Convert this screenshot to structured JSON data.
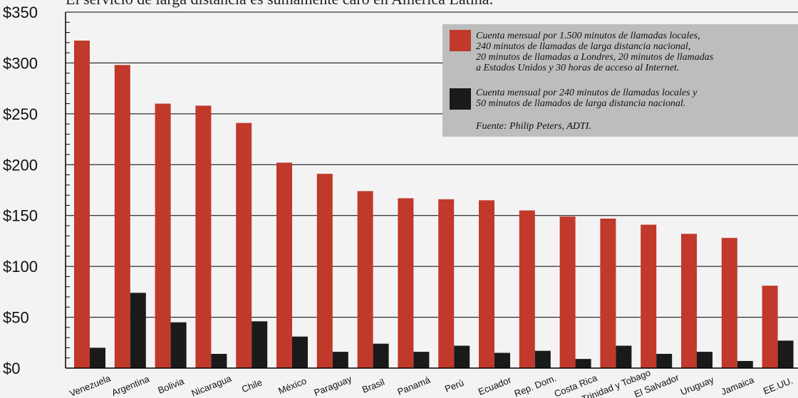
{
  "title": "El servicio de larga distancia es sumamente caro en América Latina.",
  "colors": {
    "series1": "#c0392b",
    "series2": "#1a1a1a",
    "background": "#f3f3f3",
    "legend_bg": "#bdbdbd"
  },
  "legend": {
    "entry1_lines": [
      "Cuenta mensual por 1.500 minutos de llamadas locales,",
      "240 minutos de llamadas de larga distancia nacional,",
      "20 minutos de llamadas a Londres, 20 minutos de llamadas",
      "a Estados Unidos y 30 horas de acceso al Internet."
    ],
    "entry2_lines": [
      "Cuenta mensual por 240 minutos de llamadas locales y",
      "50 minutos de llamados de larga distancia nacional."
    ],
    "source": "Fuente: Philip Peters, ADTI."
  },
  "chart_data": {
    "type": "bar",
    "title": "El servicio de larga distancia es sumamente caro en América Latina.",
    "xlabel": "",
    "ylabel": "",
    "ylim": [
      0,
      350
    ],
    "yticks": [
      "$0",
      "$50",
      "$100",
      "$150",
      "$200",
      "$250",
      "$300",
      "$350"
    ],
    "grid": true,
    "legend_position": "top-right",
    "categories": [
      "Venezuela",
      "Argentina",
      "Bolivia",
      "Nicaragua",
      "Chile",
      "México",
      "Paraguay",
      "Brasil",
      "Panamá",
      "Perú",
      "Ecuador",
      "Rep. Dom.",
      "Costa Rica",
      "Trinidad y Tobago",
      "El Salvador",
      "Uruguay",
      "Jamaica",
      "EE.UU."
    ],
    "series": [
      {
        "values": [
          322,
          298,
          260,
          258,
          241,
          202,
          191,
          174,
          167,
          166,
          165,
          155,
          149,
          147,
          141,
          132,
          128,
          81
        ]
      },
      {
        "values": [
          20,
          74,
          45,
          14,
          46,
          31,
          16,
          24,
          16,
          22,
          15,
          17,
          9,
          22,
          14,
          16,
          7,
          27
        ]
      }
    ]
  }
}
